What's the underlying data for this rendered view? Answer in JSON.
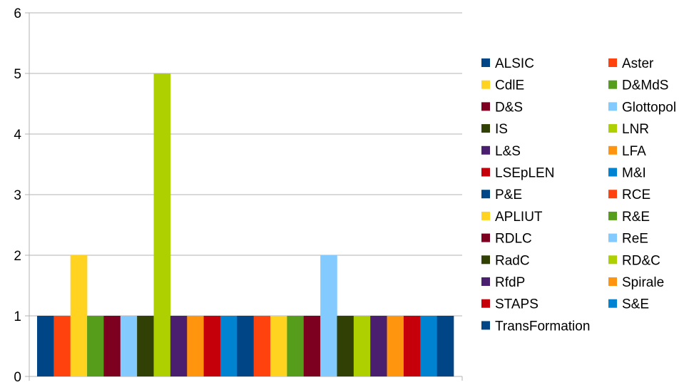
{
  "chart_data": {
    "type": "bar",
    "title": "",
    "xlabel": "",
    "ylabel": "",
    "ylim": [
      0,
      6
    ],
    "yticks": [
      0,
      1,
      2,
      3,
      4,
      5,
      6
    ],
    "grid": "horizontal",
    "legend_position": "right",
    "categories": [
      ""
    ],
    "series": [
      {
        "name": "ALSIC",
        "value": 1,
        "color": "#004586"
      },
      {
        "name": "Aster",
        "value": 1,
        "color": "#FF420E"
      },
      {
        "name": "CdlE",
        "value": 2,
        "color": "#FFD320"
      },
      {
        "name": "D&MdS",
        "value": 1,
        "color": "#579D1C"
      },
      {
        "name": "D&S",
        "value": 1,
        "color": "#7E0021"
      },
      {
        "name": "Glottopol",
        "value": 1,
        "color": "#83CAFF"
      },
      {
        "name": "IS",
        "value": 1,
        "color": "#314004"
      },
      {
        "name": "LNR",
        "value": 5,
        "color": "#AECF00"
      },
      {
        "name": "L&S",
        "value": 1,
        "color": "#4B1F6F"
      },
      {
        "name": "LFA",
        "value": 1,
        "color": "#FF950E"
      },
      {
        "name": "LSEpLEN",
        "value": 1,
        "color": "#C5000B"
      },
      {
        "name": "M&I",
        "value": 1,
        "color": "#0084D1"
      },
      {
        "name": "P&E",
        "value": 1,
        "color": "#004586"
      },
      {
        "name": "RCE",
        "value": 1,
        "color": "#FF420E"
      },
      {
        "name": "APLIUT",
        "value": 1,
        "color": "#FFD320"
      },
      {
        "name": "R&E",
        "value": 1,
        "color": "#579D1C"
      },
      {
        "name": "RDLC",
        "value": 1,
        "color": "#7E0021"
      },
      {
        "name": "ReE",
        "value": 2,
        "color": "#83CAFF"
      },
      {
        "name": "RadC",
        "value": 1,
        "color": "#314004"
      },
      {
        "name": "RD&C",
        "value": 1,
        "color": "#AECF00"
      },
      {
        "name": "RfdP",
        "value": 1,
        "color": "#4B1F6F"
      },
      {
        "name": "Spirale",
        "value": 1,
        "color": "#FF950E"
      },
      {
        "name": "STAPS",
        "value": 1,
        "color": "#C5000B"
      },
      {
        "name": "S&E",
        "value": 1,
        "color": "#0084D1"
      },
      {
        "name": "TransFormation",
        "value": 1,
        "color": "#004586"
      }
    ]
  }
}
